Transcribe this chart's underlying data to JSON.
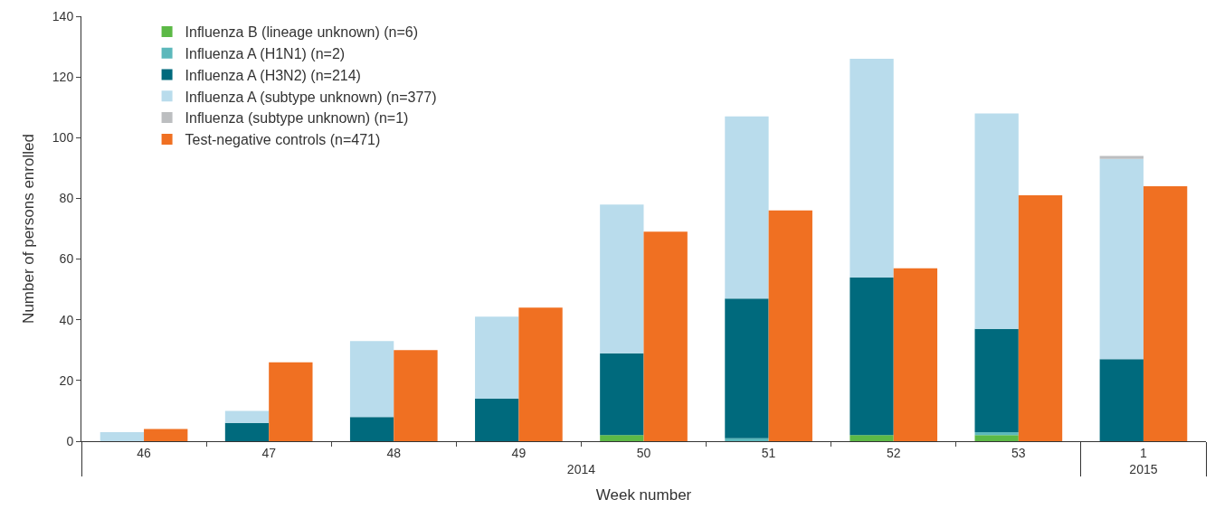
{
  "chart_data": {
    "type": "bar",
    "xlabel": "Week number",
    "ylabel": "Number of persons enrolled",
    "categories": [
      "46",
      "47",
      "48",
      "49",
      "50",
      "51",
      "52",
      "53",
      "1"
    ],
    "annotations": [
      "2014",
      "2015"
    ],
    "series": [
      {
        "name": "Influenza B (lineage unknown) (n=6)",
        "color": "#5cb946",
        "base": [
          null,
          null,
          null,
          null,
          0,
          null,
          0,
          0,
          null
        ],
        "values": [
          null,
          null,
          null,
          null,
          2,
          null,
          2,
          2,
          null
        ]
      },
      {
        "name": "Influenza A (H1N1) (n=2)",
        "color": "#5cb8bb",
        "base": [
          null,
          null,
          null,
          null,
          null,
          0,
          null,
          2,
          null
        ],
        "values": [
          null,
          null,
          null,
          null,
          null,
          1,
          null,
          1,
          null
        ]
      },
      {
        "name": "Influenza A (H3N2) (n=214)",
        "color": "#006a7d",
        "base": [
          null,
          0,
          0,
          0,
          2,
          1,
          2,
          3,
          0
        ],
        "values": [
          null,
          6,
          8,
          14,
          27,
          46,
          52,
          34,
          27
        ]
      },
      {
        "name": "Influenza A (subtype unknown) (n=377)",
        "color": "#b9dcec",
        "base": [
          0,
          6,
          8,
          14,
          29,
          47,
          54,
          37,
          27
        ],
        "values": [
          3,
          4,
          25,
          27,
          49,
          60,
          72,
          71,
          66
        ]
      },
      {
        "name": "Influenza (subtype unknown) (n=1)",
        "color": "#bcbec0",
        "base": [
          null,
          null,
          null,
          null,
          null,
          null,
          null,
          null,
          93
        ],
        "values": [
          null,
          null,
          null,
          null,
          null,
          null,
          null,
          null,
          1
        ]
      },
      {
        "name": "Test-negative controls (n=471)",
        "color": "#f07022",
        "values": [
          4,
          26,
          30,
          44,
          69,
          76,
          57,
          81,
          84
        ]
      }
    ],
    "ylim": [
      0,
      140
    ],
    "yticks": [
      0,
      20,
      40,
      60,
      80,
      100,
      120,
      140
    ],
    "legend": "top left"
  }
}
